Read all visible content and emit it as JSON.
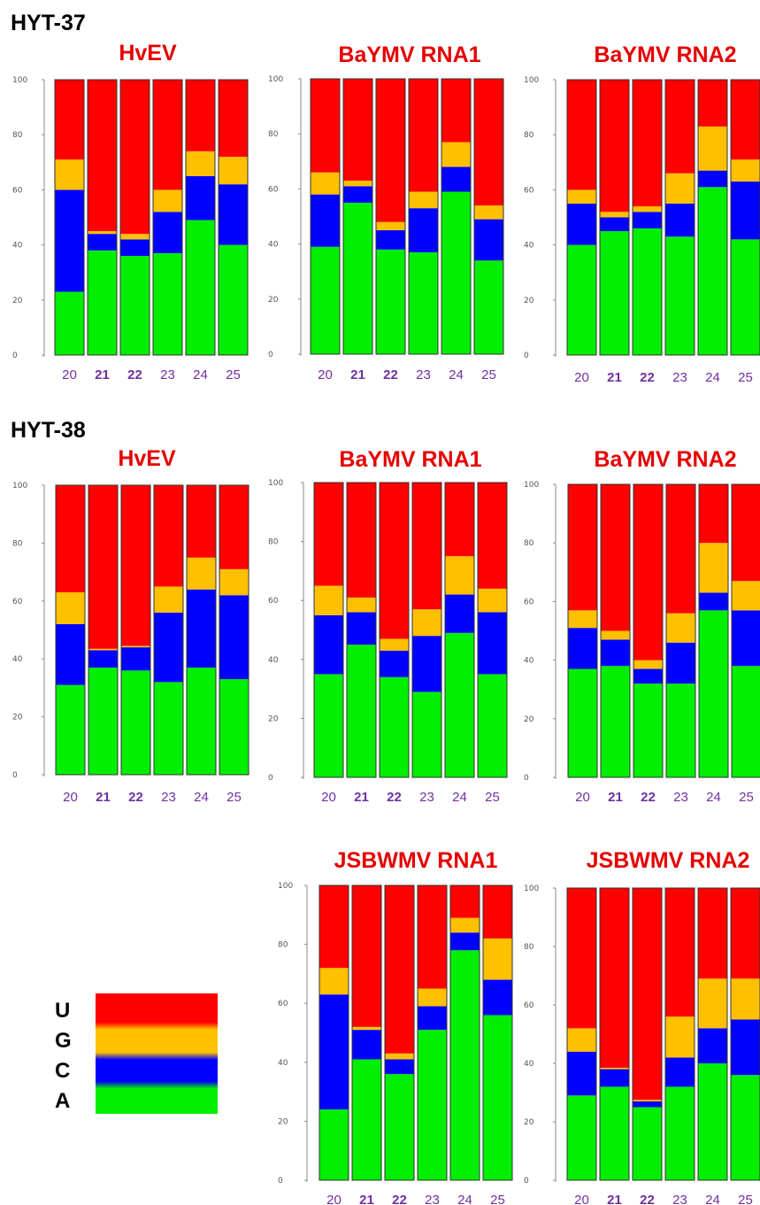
{
  "sections": [
    {
      "label": "HYT-37"
    },
    {
      "label": "HYT-38"
    }
  ],
  "colors": {
    "U": "#ff0000",
    "G": "#ffc000",
    "C": "#0000ff",
    "A": "#00ee00",
    "title": "#e60000",
    "xtick": "#7030a0"
  },
  "legend": {
    "labels": [
      "U",
      "G",
      "C",
      "A"
    ]
  },
  "chart_data": [
    {
      "type": "bar",
      "stacked": true,
      "section": "HYT-37",
      "title": "HvEV",
      "categories": [
        "20",
        "21",
        "22",
        "23",
        "24",
        "25"
      ],
      "bold_categories": [
        "21",
        "22"
      ],
      "y_ticks": [
        "0",
        "20",
        "40",
        "60",
        "80",
        "100"
      ],
      "ylim": [
        0,
        100
      ],
      "series": [
        {
          "name": "A",
          "values": [
            23,
            38,
            36,
            37,
            49,
            40
          ]
        },
        {
          "name": "C",
          "values": [
            37,
            6,
            6,
            15,
            16,
            22
          ]
        },
        {
          "name": "G",
          "values": [
            11,
            1,
            2,
            8,
            9,
            10
          ]
        },
        {
          "name": "U",
          "values": [
            29,
            55,
            56,
            40,
            26,
            28
          ]
        }
      ]
    },
    {
      "type": "bar",
      "stacked": true,
      "section": "HYT-37",
      "title": "BaYMV RNA1",
      "categories": [
        "20",
        "21",
        "22",
        "23",
        "24",
        "25"
      ],
      "bold_categories": [
        "21",
        "22"
      ],
      "y_ticks": [
        "0",
        "20",
        "40",
        "60",
        "80",
        "100"
      ],
      "ylim": [
        0,
        100
      ],
      "series": [
        {
          "name": "A",
          "values": [
            39,
            55,
            38,
            37,
            59,
            34
          ]
        },
        {
          "name": "C",
          "values": [
            19,
            6,
            7,
            16,
            9,
            15
          ]
        },
        {
          "name": "G",
          "values": [
            8,
            2,
            3,
            6,
            9,
            5
          ]
        },
        {
          "name": "U",
          "values": [
            34,
            37,
            52,
            41,
            23,
            46
          ]
        }
      ]
    },
    {
      "type": "bar",
      "stacked": true,
      "section": "HYT-37",
      "title": "BaYMV RNA2",
      "categories": [
        "20",
        "21",
        "22",
        "23",
        "24",
        "25"
      ],
      "bold_categories": [
        "21",
        "22"
      ],
      "y_ticks": [
        "0",
        "20",
        "40",
        "60",
        "80",
        "100"
      ],
      "ylim": [
        0,
        100
      ],
      "series": [
        {
          "name": "A",
          "values": [
            40,
            45,
            46,
            43,
            61,
            42
          ]
        },
        {
          "name": "C",
          "values": [
            15,
            5,
            6,
            12,
            6,
            21
          ]
        },
        {
          "name": "G",
          "values": [
            5,
            2,
            2,
            11,
            16,
            8
          ]
        },
        {
          "name": "U",
          "values": [
            40,
            48,
            46,
            34,
            17,
            29
          ]
        }
      ]
    },
    {
      "type": "bar",
      "stacked": true,
      "section": "HYT-38",
      "title": "HvEV",
      "categories": [
        "20",
        "21",
        "22",
        "23",
        "24",
        "25"
      ],
      "bold_categories": [
        "21",
        "22"
      ],
      "y_ticks": [
        "0",
        "20",
        "40",
        "60",
        "80",
        "100"
      ],
      "ylim": [
        0,
        100
      ],
      "series": [
        {
          "name": "A",
          "values": [
            31,
            37,
            36,
            32,
            37,
            33
          ]
        },
        {
          "name": "C",
          "values": [
            21,
            6,
            8,
            24,
            27,
            29
          ]
        },
        {
          "name": "G",
          "values": [
            11,
            0.5,
            0.5,
            9,
            11,
            9
          ]
        },
        {
          "name": "U",
          "values": [
            37,
            56.5,
            55.5,
            35,
            25,
            29
          ]
        }
      ]
    },
    {
      "type": "bar",
      "stacked": true,
      "section": "HYT-38",
      "title": "BaYMV RNA1",
      "categories": [
        "20",
        "21",
        "22",
        "23",
        "24",
        "25"
      ],
      "bold_categories": [
        "21",
        "22"
      ],
      "y_ticks": [
        "0",
        "20",
        "40",
        "60",
        "80",
        "100"
      ],
      "ylim": [
        0,
        100
      ],
      "series": [
        {
          "name": "A",
          "values": [
            35,
            45,
            34,
            29,
            49,
            35
          ]
        },
        {
          "name": "C",
          "values": [
            20,
            11,
            9,
            19,
            13,
            21
          ]
        },
        {
          "name": "G",
          "values": [
            10,
            5,
            4,
            9,
            13,
            8
          ]
        },
        {
          "name": "U",
          "values": [
            35,
            39,
            53,
            43,
            25,
            36
          ]
        }
      ]
    },
    {
      "type": "bar",
      "stacked": true,
      "section": "HYT-38",
      "title": "BaYMV RNA2",
      "categories": [
        "20",
        "21",
        "22",
        "23",
        "24",
        "25"
      ],
      "bold_categories": [
        "21",
        "22"
      ],
      "y_ticks": [
        "0",
        "20",
        "40",
        "60",
        "80",
        "100"
      ],
      "ylim": [
        0,
        100
      ],
      "series": [
        {
          "name": "A",
          "values": [
            37,
            38,
            32,
            32,
            57,
            38
          ]
        },
        {
          "name": "C",
          "values": [
            14,
            9,
            5,
            14,
            6,
            19
          ]
        },
        {
          "name": "G",
          "values": [
            6,
            3,
            3,
            10,
            17,
            10
          ]
        },
        {
          "name": "U",
          "values": [
            43,
            50,
            60,
            44,
            20,
            33
          ]
        }
      ]
    },
    {
      "type": "bar",
      "stacked": true,
      "section": "HYT-38",
      "title": "JSBWMV RNA1",
      "categories": [
        "20",
        "21",
        "22",
        "23",
        "24",
        "25"
      ],
      "bold_categories": [
        "21",
        "22"
      ],
      "y_ticks": [
        "0",
        "20",
        "40",
        "60",
        "80",
        "100"
      ],
      "ylim": [
        0,
        100
      ],
      "series": [
        {
          "name": "A",
          "values": [
            24,
            41,
            36,
            51,
            78,
            56
          ]
        },
        {
          "name": "C",
          "values": [
            39,
            10,
            5,
            8,
            6,
            12
          ]
        },
        {
          "name": "G",
          "values": [
            9,
            1,
            2,
            6,
            5,
            14
          ]
        },
        {
          "name": "U",
          "values": [
            28,
            48,
            57,
            35,
            11,
            18
          ]
        }
      ]
    },
    {
      "type": "bar",
      "stacked": true,
      "section": "HYT-38",
      "title": "JSBWMV RNA2",
      "categories": [
        "20",
        "21",
        "22",
        "23",
        "24",
        "25"
      ],
      "bold_categories": [
        "21",
        "22"
      ],
      "y_ticks": [
        "0",
        "20",
        "40",
        "60",
        "80",
        "100"
      ],
      "ylim": [
        0,
        100
      ],
      "series": [
        {
          "name": "A",
          "values": [
            29,
            32,
            25,
            32,
            40,
            36
          ]
        },
        {
          "name": "C",
          "values": [
            15,
            6,
            2,
            10,
            12,
            19
          ]
        },
        {
          "name": "G",
          "values": [
            8,
            0.5,
            0.5,
            14,
            17,
            14
          ]
        },
        {
          "name": "U",
          "values": [
            48,
            61.5,
            72.5,
            44,
            31,
            31
          ]
        }
      ]
    }
  ]
}
